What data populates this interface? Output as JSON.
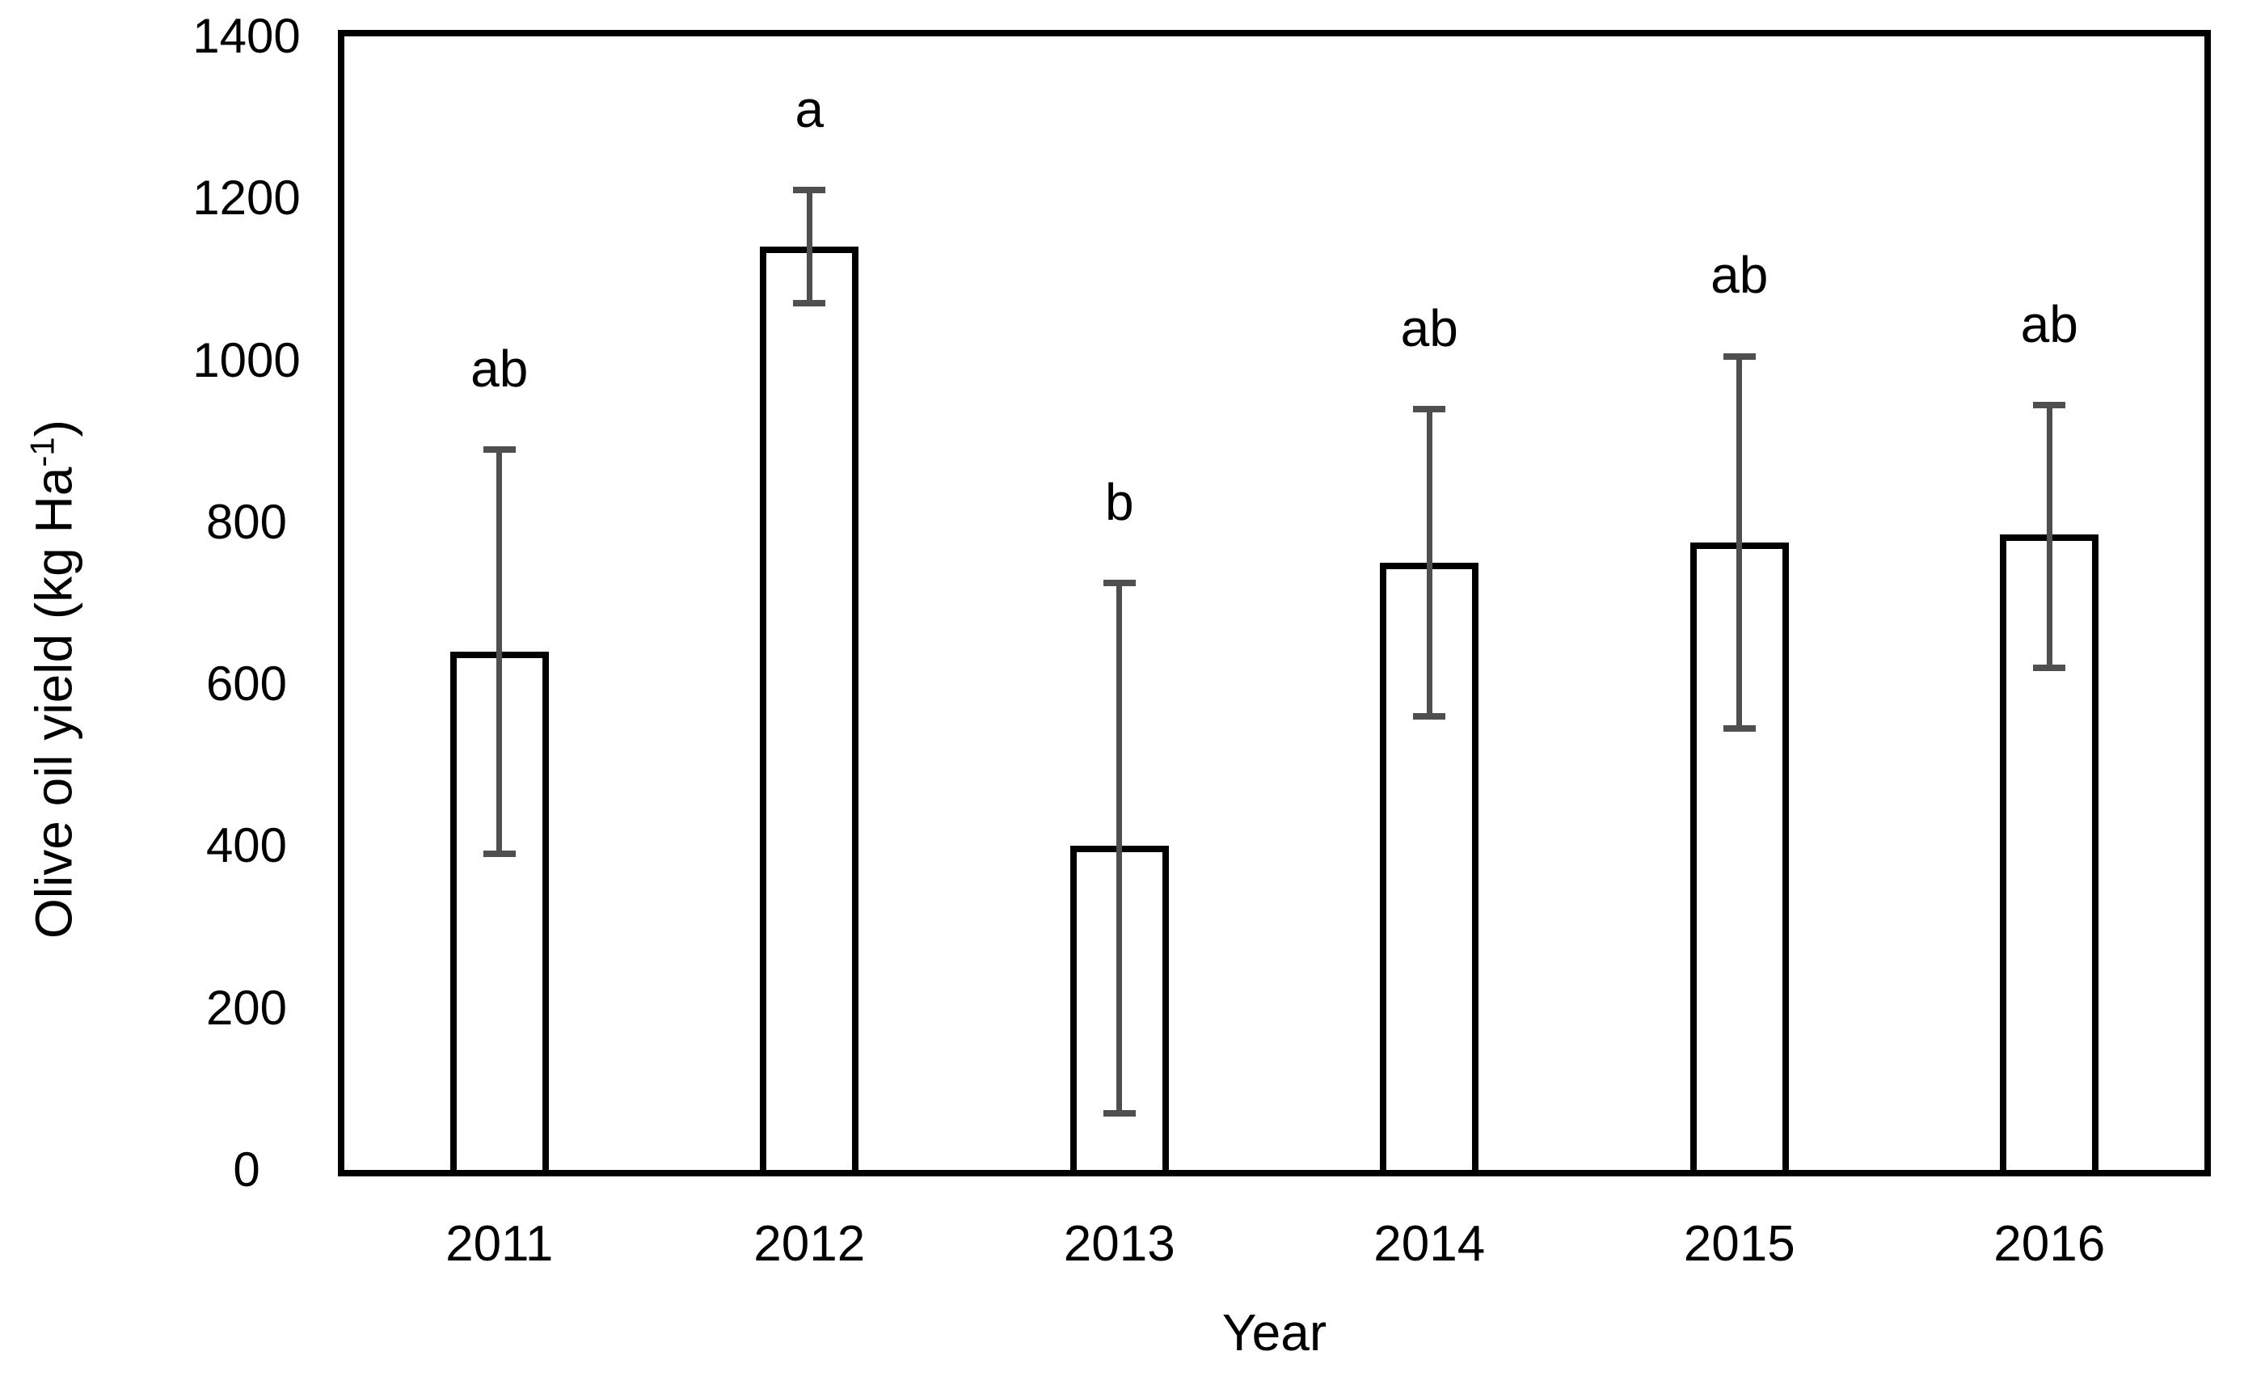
{
  "chart_data": {
    "type": "bar",
    "title": "",
    "xlabel": "Year",
    "ylabel_text": "Olive oil yield (kg Ha-1)",
    "ylabel_parts": {
      "prefix": "Olive oil yield (kg Ha",
      "sup": "-1",
      "suffix": ")"
    },
    "categories": [
      "2011",
      "2012",
      "2013",
      "2014",
      "2015",
      "2016"
    ],
    "values": [
      640,
      1140,
      400,
      750,
      775,
      785
    ],
    "error_upper_cap": [
      890,
      1210,
      725,
      940,
      1005,
      945
    ],
    "error_lower_cap": [
      390,
      1070,
      70,
      560,
      545,
      620
    ],
    "sig_letters": [
      "ab",
      "a",
      "b",
      "ab",
      "ab",
      "ab"
    ],
    "ylim": [
      0,
      1400
    ],
    "yticks": [
      0,
      200,
      400,
      600,
      800,
      1000,
      1200,
      1400
    ],
    "grid": false,
    "legend_position": "none",
    "bar_fill_color": "#ffffff",
    "bar_border_color": "#000000",
    "error_bar_color": "#4f4f4f",
    "sig_letter_offset_units": 100
  }
}
